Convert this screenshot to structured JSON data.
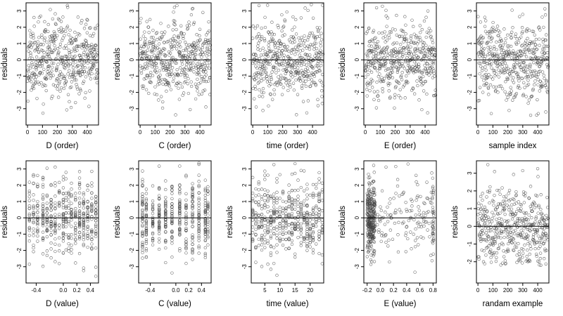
{
  "figure": {
    "panel_count": 10
  },
  "chart_data": [
    {
      "type": "scatter",
      "xlabel": "D (order)",
      "ylabel": "residuals",
      "xlim": [
        -10,
        475
      ],
      "ylim": [
        -4,
        3.5
      ],
      "xticks": [
        0,
        100,
        200,
        300,
        400
      ],
      "yticks": [
        -3,
        -2,
        -1,
        0,
        1,
        2,
        3
      ],
      "reference_line_y": 0,
      "seed": 11,
      "n": 470,
      "x_mode": "index",
      "x_range": [
        0,
        470
      ],
      "y_min": -3.6,
      "y_max": 3.4,
      "marker": "open-circle",
      "color": "#444444"
    },
    {
      "type": "scatter",
      "xlabel": "C (order)",
      "ylabel": "residuals",
      "xlim": [
        -10,
        475
      ],
      "ylim": [
        -4,
        3.5
      ],
      "xticks": [
        0,
        100,
        200,
        300,
        400
      ],
      "yticks": [
        -3,
        -2,
        -1,
        0,
        1,
        2,
        3
      ],
      "reference_line_y": 0,
      "seed": 23,
      "n": 470,
      "x_mode": "index",
      "x_range": [
        0,
        470
      ],
      "y_min": -3.6,
      "y_max": 3.4,
      "marker": "open-circle",
      "color": "#444444"
    },
    {
      "type": "scatter",
      "xlabel": "time (order)",
      "ylabel": "residuals",
      "xlim": [
        -10,
        475
      ],
      "ylim": [
        -4,
        3.5
      ],
      "xticks": [
        0,
        100,
        200,
        300,
        400
      ],
      "yticks": [
        -3,
        -2,
        -1,
        0,
        1,
        2,
        3
      ],
      "reference_line_y": 0,
      "seed": 37,
      "n": 470,
      "x_mode": "index",
      "x_range": [
        0,
        470
      ],
      "y_min": -3.6,
      "y_max": 3.4,
      "marker": "open-circle",
      "color": "#444444"
    },
    {
      "type": "scatter",
      "xlabel": "E (order)",
      "ylabel": "residuals",
      "xlim": [
        -10,
        475
      ],
      "ylim": [
        -4,
        3.5
      ],
      "xticks": [
        0,
        100,
        200,
        300,
        400
      ],
      "yticks": [
        -3,
        -2,
        -1,
        0,
        1,
        2,
        3
      ],
      "reference_line_y": 0,
      "seed": 41,
      "n": 470,
      "x_mode": "index",
      "x_range": [
        0,
        470
      ],
      "y_min": -3.6,
      "y_max": 3.4,
      "marker": "open-circle",
      "color": "#444444"
    },
    {
      "type": "scatter",
      "xlabel": "sample index",
      "ylabel": "residuals",
      "xlim": [
        -10,
        475
      ],
      "ylim": [
        -4,
        3.5
      ],
      "xticks": [
        0,
        100,
        200,
        300,
        400
      ],
      "yticks": [
        -3,
        -2,
        -1,
        0,
        1,
        2,
        3
      ],
      "reference_line_y": 0,
      "seed": 53,
      "n": 470,
      "x_mode": "index",
      "x_range": [
        0,
        470
      ],
      "y_min": -3.6,
      "y_max": 3.4,
      "marker": "open-circle",
      "color": "#444444"
    },
    {
      "type": "scatter",
      "xlabel": "D (value)",
      "ylabel": "residuals",
      "xlim": [
        -0.55,
        0.52
      ],
      "ylim": [
        -4,
        3.5
      ],
      "xticks": [
        -0.4,
        0.0,
        0.2,
        0.4
      ],
      "xtick_labels": [
        "-0.4",
        "0.0",
        "0.2",
        "0.4"
      ],
      "yticks": [
        -3,
        -2,
        -1,
        0,
        1,
        2,
        3
      ],
      "reference_line_y": 0,
      "seed": 61,
      "n": 470,
      "x_mode": "columns",
      "x_columns": [
        -0.5,
        -0.44,
        -0.38,
        -0.3,
        -0.24,
        -0.18,
        -0.12,
        -0.06,
        0.0,
        0.04,
        0.08,
        0.12,
        0.18,
        0.24,
        0.3,
        0.36,
        0.42,
        0.48
      ],
      "y_min": -3.6,
      "y_max": 3.4,
      "marker": "open-circle",
      "color": "#444444"
    },
    {
      "type": "scatter",
      "xlabel": "C (value)",
      "ylabel": "residuals",
      "xlim": [
        -0.58,
        0.55
      ],
      "ylim": [
        -4,
        3.5
      ],
      "xticks": [
        -0.4,
        0.0,
        0.2,
        0.4
      ],
      "xtick_labels": [
        "-0.4",
        "0.0",
        "0.2",
        "0.4"
      ],
      "yticks": [
        -3,
        -2,
        -1,
        0,
        1,
        2,
        3
      ],
      "reference_line_y": 0,
      "seed": 71,
      "n": 470,
      "x_mode": "columns",
      "x_columns": [
        -0.52,
        -0.46,
        -0.36,
        -0.26,
        -0.16,
        -0.06,
        0.06,
        0.16,
        0.26,
        0.36,
        0.46,
        0.5
      ],
      "y_min": -3.6,
      "y_max": 3.4,
      "marker": "open-circle",
      "color": "#444444"
    },
    {
      "type": "scatter",
      "xlabel": "time (value)",
      "ylabel": "residuals",
      "xlim": [
        0.5,
        24.5
      ],
      "ylim": [
        -4,
        3.5
      ],
      "xticks": [
        5,
        10,
        15,
        20
      ],
      "yticks": [
        -3,
        -2,
        -1,
        0,
        1,
        2,
        3
      ],
      "reference_line_y": 0,
      "seed": 83,
      "n": 470,
      "x_mode": "columns",
      "x_columns": [
        1,
        2,
        3,
        4,
        5,
        6,
        7,
        8,
        9,
        10,
        11,
        12,
        13,
        14,
        15,
        16,
        17,
        18,
        19,
        20,
        21,
        22,
        23,
        24
      ],
      "y_min": -3.6,
      "y_max": 3.4,
      "marker": "open-circle",
      "color": "#444444"
    },
    {
      "type": "scatter",
      "xlabel": "E (value)",
      "ylabel": "residuals",
      "xlim": [
        -0.25,
        0.85
      ],
      "ylim": [
        -4,
        3.5
      ],
      "xticks": [
        -0.2,
        0.0,
        0.2,
        0.4,
        0.6,
        0.8
      ],
      "xtick_labels": [
        "-0.2",
        "0.0",
        "0.2",
        "0.4",
        "0.6",
        "0.8"
      ],
      "yticks": [
        -3,
        -2,
        -1,
        0,
        1,
        2,
        3
      ],
      "reference_line_y": 0,
      "seed": 97,
      "n": 470,
      "x_mode": "skewed",
      "x_cluster": [
        -0.2,
        -0.08
      ],
      "x_tail": [
        -0.05,
        0.82
      ],
      "x_right_column": 0.8,
      "y_min": -3.6,
      "y_max": 3.4,
      "marker": "open-circle",
      "color": "#444444"
    },
    {
      "type": "scatter",
      "xlabel": "randam example",
      "ylabel": "residuals",
      "xlim": [
        -10,
        475
      ],
      "ylim": [
        -3.2,
        3.7
      ],
      "xticks": [
        0,
        100,
        200,
        300,
        400
      ],
      "yticks": [
        -2,
        -1,
        0,
        1,
        2,
        3
      ],
      "reference_line_y": 0,
      "seed": 109,
      "n": 470,
      "x_mode": "index",
      "x_range": [
        0,
        470
      ],
      "y_min": -2.2,
      "y_max": 3.5,
      "marker": "open-circle",
      "color": "#444444"
    }
  ]
}
